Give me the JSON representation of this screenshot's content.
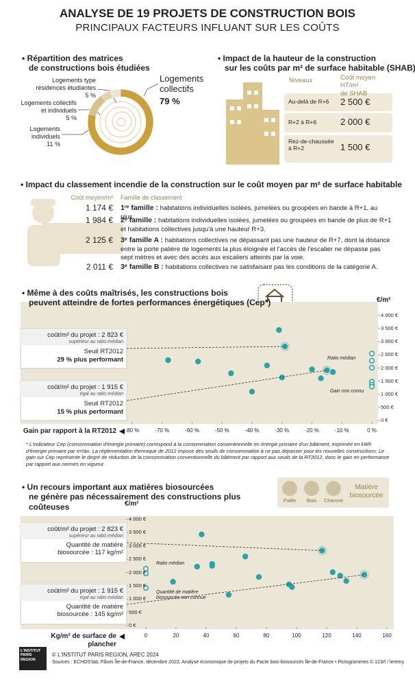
{
  "header": {
    "title": "ANALYSE DE 19 PROJETS DE CONSTRUCTION BOIS",
    "subtitle": "PRINCIPAUX FACTEURS INFLUANT SUR LES COÛTS"
  },
  "chart_data": [
    {
      "type": "donut",
      "title": "• Répartition des matrices\nde constructions bois étudiées",
      "categories": [
        "Logements type\nrésidences étudiantes",
        "Logements collectifs\net individuels",
        "Logements\nindividuels",
        "Logements\ncollectifs"
      ],
      "values": [
        5,
        5,
        11,
        79
      ],
      "value_labels": [
        "5 %",
        "5 %",
        "11 %",
        "79 %"
      ],
      "colors": [
        "#efe5cf",
        "#e2d3ad",
        "#d6c08b",
        "#c9a03a"
      ]
    },
    {
      "type": "scatter",
      "title": "• Même à des coûts maîtrisés, les constructions bois\npeuvent atteindre de fortes performances énergétiques (Cep*)",
      "ylabel": "€/m²",
      "xlabel": "Gain par rapport à la RT2012",
      "xlim": [
        -80,
        0
      ],
      "ylim": [
        0,
        4000
      ],
      "xticks": [
        {
          "value": -80,
          "label": "-80 %"
        },
        {
          "value": -70,
          "label": "-70 %"
        },
        {
          "value": -60,
          "label": "-60 %"
        },
        {
          "value": -50,
          "label": "-50 %"
        },
        {
          "value": -40,
          "label": "-40 %"
        },
        {
          "value": -30,
          "label": "-30 %"
        },
        {
          "value": -20,
          "label": "-20 %"
        },
        {
          "value": -10,
          "label": "-10 %"
        },
        {
          "value": 0,
          "label": "0 %"
        }
      ],
      "yticks": [
        {
          "value": 0,
          "label": "0 €"
        },
        {
          "value": 500,
          "label": "500 €"
        },
        {
          "value": 1000,
          "label": "1 000 €"
        },
        {
          "value": 1500,
          "label": "1 500 €"
        },
        {
          "value": 2000,
          "label": "2 000 €"
        },
        {
          "value": 2500,
          "label": "2 500 €"
        },
        {
          "value": 3000,
          "label": "3 000 €"
        },
        {
          "value": 3500,
          "label": "3 500 €"
        },
        {
          "value": 4000,
          "label": "4 000 €"
        }
      ],
      "series": [
        {
          "color": "#2aa3a8",
          "x": [
            -31,
            -29,
            -68,
            -58,
            -35,
            -47,
            -20,
            -15,
            -13,
            -30,
            -17,
            -40
          ],
          "values": [
            3450,
            2823,
            2300,
            2250,
            2100,
            1800,
            1950,
            1915,
            1850,
            1640,
            1610,
            1100
          ]
        },
        {
          "name": "Gain non connu",
          "color": "#2aa3a8",
          "hollow": true,
          "values": [
            2550,
            2280,
            2010,
            1480,
            1370,
            1290
          ]
        }
      ],
      "annotations": [
        "Ratio médian"
      ],
      "boxes": [
        {
          "cost": "coût/m² du projet : 2 823 €",
          "note": "supérieur au ratio médian",
          "threshold": "Seuil RT2012",
          "gain": "29 % plus performant"
        },
        {
          "cost": "coût/m² du projet : 1 915 €",
          "note": "égal au ratio médian",
          "threshold": "Seuil RT2012",
          "gain": "15 % plus performant"
        }
      ],
      "footnote": "* L'indicateur Cep (consommation d'énergie primaire) correspond à la consommation conventionnelle en énergie primaire d'un bâtiment, exprimée en kWh d'énergie primaire par m²/an. La réglementation thermique de 2012 impose des seuils de consommation à ne pas dépasser pour les nouvelles constructions. Le gain sur Cep représente le degré de réduction de la consommation conventionnelle du bâtiment par rapport aux seuils de la RT2012, donc le gain en performance par rapport aux normes en vigueur."
    },
    {
      "type": "scatter",
      "title": "• Un recours important aux matières biosourcées\nne génère pas nécessairement des constructions plus coûteuses",
      "ylabel": "€/m²",
      "xlabel": "Kg/m² de surface de plancher",
      "xlim": [
        0,
        160
      ],
      "ylim": [
        0,
        4000
      ],
      "xticks": [
        0,
        20,
        40,
        60,
        80,
        100,
        120,
        140,
        160
      ],
      "yticks": [
        {
          "value": 0,
          "label": "0 €"
        },
        {
          "value": 500,
          "label": "500 €"
        },
        {
          "value": 1000,
          "label": "1 000 €"
        },
        {
          "value": 1500,
          "label": "1 500 €"
        },
        {
          "value": 2000,
          "label": "2 000 €"
        },
        {
          "value": 2500,
          "label": "2 500 €"
        },
        {
          "value": 3000,
          "label": "3 000 €"
        },
        {
          "value": 3500,
          "label": "3 500 €"
        },
        {
          "value": 4000,
          "label": "4 000 €"
        }
      ],
      "series": [
        {
          "color": "#2aa3a8",
          "x": [
            37,
            117,
            66,
            34,
            44,
            44,
            75,
            18,
            55,
            95,
            97,
            124,
            129,
            133,
            145
          ],
          "values": [
            3430,
            2823,
            2600,
            2220,
            2320,
            2250,
            1830,
            1650,
            1160,
            1550,
            1450,
            2010,
            1880,
            1680,
            1915
          ]
        },
        {
          "name": "Quantité de matière\nbiosourcée non connue",
          "color": "#2aa3a8",
          "hollow": true,
          "values": [
            2140,
            1960,
            1420
          ]
        }
      ],
      "annotations": [
        "Ratio médian"
      ],
      "legend_icons": [
        "Paille",
        "Bois",
        "Chanvre"
      ],
      "legend_title": "Matière\nbiosourcée",
      "boxes": [
        {
          "cost": "coût/m² du projet : 2 823 €",
          "note": "supérieur au ratio médian",
          "quantity": "Quantité de matière\nbiosourcée : 117 kg/m²"
        },
        {
          "cost": "coût/m² du projet : 1 915 €",
          "note": "égal au ratio médian",
          "quantity": "Quantité de matière\nbiosourcée : 145 kg/m²"
        }
      ]
    }
  ],
  "height_table": {
    "title": "• Impact de la hauteur de la construction\nsur les coûts par m² de surface habitable (SHAB)",
    "headers": [
      "Niveaux",
      "Coût moyen HT/m²\nde SHAB"
    ],
    "rows": [
      [
        "Au-delà de R+6",
        "2 500 €"
      ],
      [
        "R+2 à R+6",
        "2 000 €"
      ],
      [
        "Rez-de-chaussée\nà R+2",
        "1 500 €"
      ]
    ]
  },
  "fire_table": {
    "title": "• Impact du classement incendie de la construction sur le coût moyen par m² de surface habitable",
    "headers": [
      "Coût moyen/m²",
      "Famille de classement"
    ],
    "rows": [
      [
        "1 174 €",
        "1ʳᵉ famille :",
        " habitations individuelles isolées, jumelées ou groupées en bande à R+1, au plus."
      ],
      [
        "1 984 €",
        "2ᵉ famille :",
        " habitations individuelles isolées, jumelées ou groupées en bande de plus de R+1 et habitations collectives jusqu'à une hauteur R+3."
      ],
      [
        "2 125 €",
        "3ᵉ famille A :",
        " habitations collectives ne dépassant pas une hauteur de R+7, dont la distance entre la porte palière de logements la plus éloignée et l'accès de l'escalier ne dépasse pas sept mètres et avec des accès aux escaliers atteints par la voie."
      ],
      [
        "2 011 €",
        "3ᵉ famille B :",
        " habitations collectives ne satisfaisant pas les conditions de la catégorie A."
      ]
    ]
  },
  "footer": {
    "logo": "L'INSTITUT\nPARIS\nREGION",
    "copyright": "© L'INSTITUT PARIS REGION, AREC 2024",
    "sources": "Sources : ECHOS'lab, Fibois Île-de-France, décembre 2023, Analyse économique de projets du Pacte bois-biosourcés Île-de-France • Pictogrammes © 123rf / leremy"
  }
}
